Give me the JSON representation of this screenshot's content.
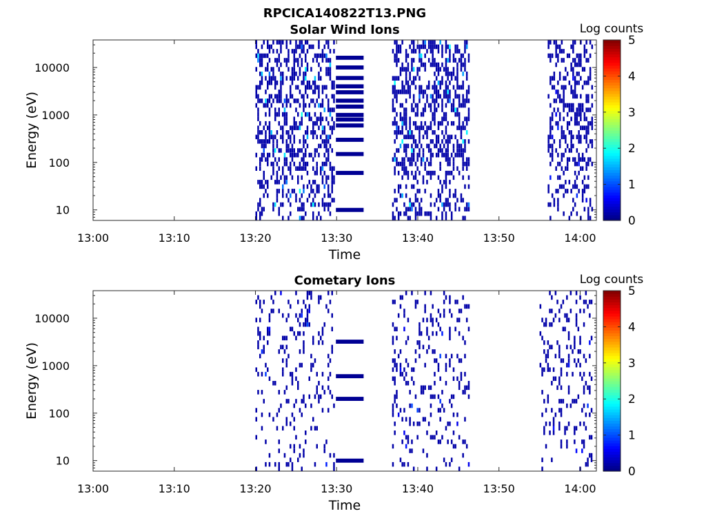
{
  "figure_title": "RPCICA140822T13.PNG",
  "chart_data": [
    {
      "type": "heatmap",
      "title": "Solar Wind Ions",
      "xlabel": "Time",
      "ylabel": "Energy (eV)",
      "x_ticks": [
        "13:00",
        "13:10",
        "13:20",
        "13:30",
        "13:40",
        "13:50",
        "14:00"
      ],
      "xlim_minutes_after_1300": [
        0,
        62
      ],
      "y_ticks": [
        "10",
        "100",
        "1000",
        "10000"
      ],
      "y_scale": "log",
      "ylim_eV": [
        6,
        38000
      ],
      "colorbar": {
        "label": "Log counts",
        "ticks": [
          "0",
          "1",
          "2",
          "3",
          "4",
          "5"
        ],
        "range": [
          0,
          5
        ],
        "colormap": "jet"
      },
      "grid": false,
      "activity_windows": [
        {
          "start_time": "13:20",
          "end_time": "13:29:40",
          "min_energy_eV": 6,
          "max_energy_eV": 36000,
          "density": 0.45,
          "typical_log_counts": 0.2,
          "peak_log_counts": 2.0
        },
        {
          "start_time": "13:29:55",
          "end_time": "13:33:20",
          "banded": true,
          "band_energies_eV": [
            10,
            60,
            150,
            300,
            600,
            800,
            1000,
            1500,
            2000,
            3000,
            4000,
            6000,
            10000,
            16000
          ],
          "typical_log_counts": 0.1
        },
        {
          "start_time": "13:36:50",
          "end_time": "13:46:20",
          "min_energy_eV": 6,
          "max_energy_eV": 36000,
          "density": 0.45,
          "typical_log_counts": 0.2,
          "peak_log_counts": 2.0
        },
        {
          "start_time": "13:56",
          "end_time": "14:01:30",
          "min_energy_eV": 6,
          "max_energy_eV": 36000,
          "density": 0.4,
          "typical_log_counts": 0.2,
          "peak_log_counts": 1.0
        }
      ]
    },
    {
      "type": "heatmap",
      "title": "Cometary Ions",
      "xlabel": "Time",
      "ylabel": "Energy (eV)",
      "x_ticks": [
        "13:00",
        "13:10",
        "13:20",
        "13:30",
        "13:40",
        "13:50",
        "14:00"
      ],
      "xlim_minutes_after_1300": [
        0,
        62
      ],
      "y_ticks": [
        "10",
        "100",
        "1000",
        "10000"
      ],
      "y_scale": "log",
      "ylim_eV": [
        6,
        38000
      ],
      "colorbar": {
        "label": "Log counts",
        "ticks": [
          "0",
          "1",
          "2",
          "3",
          "4",
          "5"
        ],
        "range": [
          0,
          5
        ],
        "colormap": "jet"
      },
      "grid": false,
      "activity_windows": [
        {
          "start_time": "13:20",
          "end_time": "13:29:40",
          "min_energy_eV": 6,
          "max_energy_eV": 36000,
          "density": 0.15,
          "typical_log_counts": 0.2,
          "peak_log_counts": 1.0
        },
        {
          "start_time": "13:29:55",
          "end_time": "13:33:20",
          "banded": true,
          "band_energies_eV": [
            10,
            200,
            600,
            3200
          ],
          "typical_log_counts": 0.1
        },
        {
          "start_time": "13:36:50",
          "end_time": "13:46:20",
          "min_energy_eV": 6,
          "max_energy_eV": 36000,
          "density": 0.18,
          "typical_log_counts": 0.2,
          "peak_log_counts": 1.0
        },
        {
          "start_time": "13:55",
          "end_time": "14:01:30",
          "min_energy_eV": 6,
          "max_energy_eV": 36000,
          "density": 0.18,
          "typical_log_counts": 0.2,
          "peak_log_counts": 1.0
        }
      ]
    }
  ]
}
